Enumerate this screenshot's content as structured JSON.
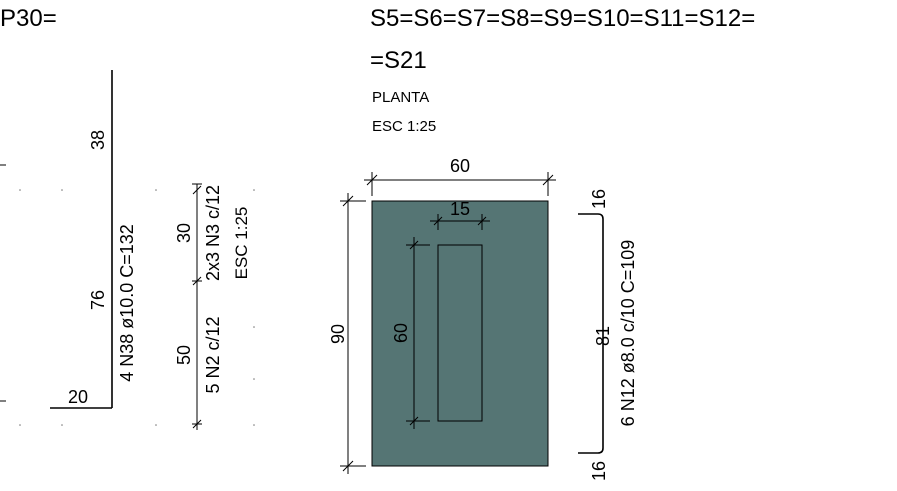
{
  "left_title": "P30=",
  "right_title_line1": "S5=S6=S7=S8=S9=S10=S11=S12=",
  "right_title_line2": "=S21",
  "view_label": "PLANTA",
  "view_scale": "ESC 1:25",
  "left_bar": {
    "dim_top": "38",
    "dim_mid": "76",
    "dim_bottom": "20",
    "label": "4 N38 ø10.0 C=132"
  },
  "stirrup_dims": {
    "dim_upper": "30",
    "dim_lower": "50",
    "label_upper": "2x3 N3 c/12",
    "label_lower": "5 N2 c/12",
    "scale": "ESC 1:25"
  },
  "section": {
    "fill_color": "#557574",
    "dim_width": "60",
    "dim_height": "90",
    "dim_inner_width": "15",
    "dim_inner_height": "60"
  },
  "right_bar": {
    "dim_top": "16",
    "dim_mid": "81",
    "dim_bottom": "16",
    "label": "6 N12 ø8.0 c/10 C=109"
  }
}
